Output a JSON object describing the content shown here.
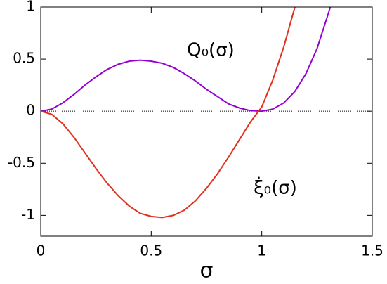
{
  "chart_data": {
    "type": "line",
    "xlabel": "σ",
    "series": [
      {
        "name": "Q₀(σ)",
        "color": "#9400d3",
        "x": [
          0,
          0.05,
          0.1,
          0.15,
          0.2,
          0.25,
          0.3,
          0.35,
          0.4,
          0.45,
          0.5,
          0.55,
          0.6,
          0.65,
          0.7,
          0.75,
          0.8,
          0.85,
          0.9,
          0.95,
          1.0,
          1.05,
          1.1,
          1.15,
          1.2,
          1.25,
          1.3,
          1.31
        ],
        "values": [
          0,
          0.02,
          0.08,
          0.16,
          0.25,
          0.33,
          0.4,
          0.45,
          0.48,
          0.49,
          0.48,
          0.46,
          0.42,
          0.36,
          0.29,
          0.21,
          0.14,
          0.07,
          0.03,
          0.005,
          0,
          0.02,
          0.08,
          0.19,
          0.36,
          0.6,
          0.93,
          1.0
        ]
      },
      {
        "name": "ξ̇₀(σ)",
        "color": "#e0301e",
        "x": [
          0,
          0.05,
          0.1,
          0.15,
          0.2,
          0.25,
          0.3,
          0.35,
          0.4,
          0.45,
          0.5,
          0.55,
          0.6,
          0.65,
          0.7,
          0.75,
          0.8,
          0.85,
          0.9,
          0.95,
          1.0,
          1.05,
          1.1,
          1.15
        ],
        "values": [
          0,
          -0.03,
          -0.12,
          -0.25,
          -0.4,
          -0.55,
          -0.69,
          -0.81,
          -0.91,
          -0.98,
          -1.01,
          -1.02,
          -1.0,
          -0.95,
          -0.86,
          -0.74,
          -0.6,
          -0.44,
          -0.27,
          -0.1,
          0.04,
          0.3,
          0.62,
          1.0
        ]
      }
    ],
    "xlim": [
      0,
      1.5
    ],
    "xticks": [
      0,
      0.5,
      1,
      1.5
    ],
    "ylim": [
      -1.2,
      1
    ],
    "yticks": [
      -1,
      -0.5,
      0,
      0.5,
      1
    ],
    "zero_line": true
  }
}
